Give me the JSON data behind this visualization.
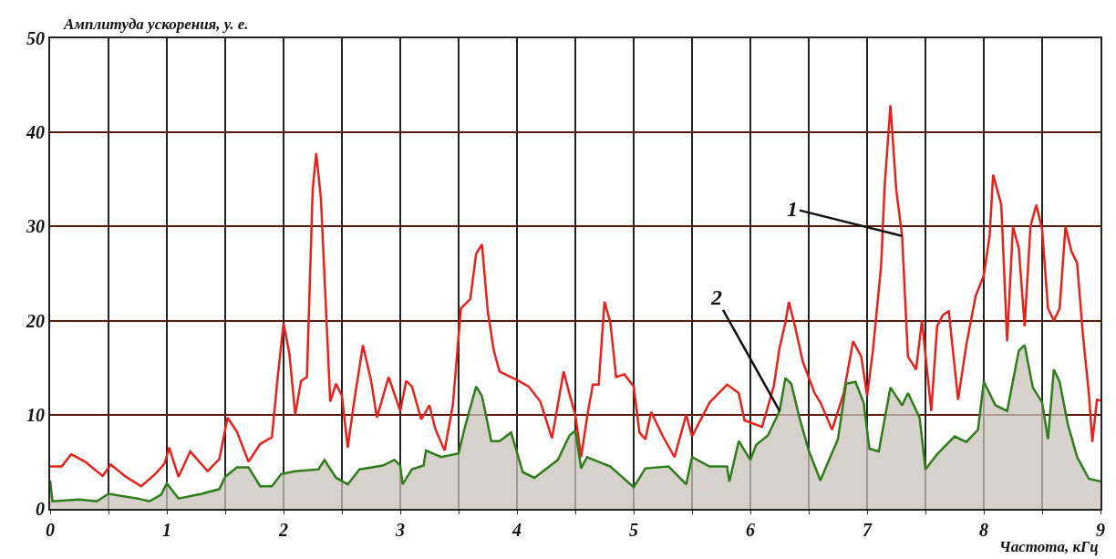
{
  "chart_data": {
    "type": "line",
    "ylabel": "Амплитуда ускорения, у. е.",
    "xlabel": "Частота, кГц",
    "xlim": [
      0,
      9
    ],
    "xticks": [
      0,
      {
        "value": 0.5,
        "label": null
      },
      1,
      {
        "value": 1.5,
        "label": null
      },
      2,
      {
        "value": 2.5,
        "label": null
      },
      3,
      {
        "value": 3.5,
        "label": null
      },
      4,
      {
        "value": 4.5,
        "label": null
      },
      5,
      {
        "value": 5.5,
        "label": null
      },
      6,
      {
        "value": 6.5,
        "label": null
      },
      7,
      {
        "value": 7.5,
        "label": null
      },
      8,
      {
        "value": 8.5,
        "label": null
      },
      9
    ],
    "ylim": [
      0,
      50
    ],
    "yticks": [
      0,
      10,
      20,
      30,
      40,
      50
    ],
    "grid": true,
    "legend": false,
    "marker": "none",
    "line_style": "solid",
    "series": [
      {
        "color": "#e8211b",
        "x": [
          0,
          0.1,
          0.18,
          0.3,
          0.45,
          0.52,
          0.65,
          0.78,
          0.9,
          0.98,
          1.02,
          1.1,
          1.2,
          1.35,
          1.45,
          1.52,
          1.6,
          1.7,
          1.8,
          1.9,
          1.95,
          2.0,
          2.05,
          2.1,
          2.15,
          2.2,
          2.25,
          2.28,
          2.32,
          2.4,
          2.45,
          2.5,
          2.55,
          2.6,
          2.68,
          2.75,
          2.8,
          2.9,
          3.0,
          3.05,
          3.1,
          3.18,
          3.25,
          3.3,
          3.38,
          3.45,
          3.52,
          3.6,
          3.65,
          3.7,
          3.75,
          3.8,
          3.85,
          3.95,
          4.0,
          4.1,
          4.2,
          4.3,
          4.4,
          4.45,
          4.5,
          4.55,
          4.6,
          4.65,
          4.7,
          4.75,
          4.8,
          4.85,
          4.92,
          5.0,
          5.05,
          5.1,
          5.15,
          5.25,
          5.35,
          5.45,
          5.5,
          5.65,
          5.8,
          5.9,
          5.95,
          6.1,
          6.2,
          6.25,
          6.3,
          6.33,
          6.38,
          6.45,
          6.55,
          6.6,
          6.7,
          6.8,
          6.88,
          6.95,
          7.0,
          7.05,
          7.12,
          7.15,
          7.2,
          7.25,
          7.3,
          7.35,
          7.42,
          7.47,
          7.55,
          7.6,
          7.65,
          7.7,
          7.78,
          7.85,
          7.93,
          8.0,
          8.05,
          8.08,
          8.15,
          8.2,
          8.25,
          8.3,
          8.35,
          8.4,
          8.45,
          8.5,
          8.55,
          8.6,
          8.65,
          8.7,
          8.75,
          8.8,
          8.85,
          8.9,
          8.93,
          8.97,
          9.0
        ],
        "values": [
          4.5,
          4.5,
          5.8,
          5.0,
          3.5,
          4.7,
          3.4,
          2.4,
          3.7,
          4.8,
          6.5,
          3.4,
          6.1,
          4.0,
          5.3,
          9.7,
          8.2,
          5.0,
          6.9,
          7.6,
          14,
          19.7,
          16.5,
          10,
          13.6,
          14,
          34,
          37.8,
          33,
          11.4,
          13.3,
          12,
          6.5,
          11,
          17.4,
          13.6,
          9.7,
          14,
          10.4,
          13.6,
          13,
          9.5,
          11,
          8.5,
          6.2,
          11,
          21.3,
          22.3,
          27.1,
          28.1,
          21,
          16.9,
          14.6,
          14,
          13.7,
          13,
          11.4,
          7.5,
          14.6,
          12.2,
          10,
          5.5,
          9.7,
          13.2,
          13.2,
          22,
          19.8,
          14,
          14.3,
          13,
          8.1,
          7.4,
          10.3,
          7.7,
          5.5,
          10,
          7.7,
          11.3,
          13.2,
          12.3,
          9.4,
          8.7,
          13,
          17.1,
          19.8,
          22,
          19.5,
          15.6,
          12.3,
          11.3,
          8.4,
          12.3,
          17.8,
          16.2,
          12,
          16.8,
          25.8,
          34.2,
          42.9,
          33.9,
          29,
          16.2,
          14.8,
          20,
          10.4,
          19.4,
          20.6,
          21,
          11.6,
          17.4,
          22.6,
          24.8,
          29,
          35.5,
          32.3,
          17.8,
          30,
          27.7,
          19.4,
          30,
          32.3,
          29.7,
          21.3,
          20,
          21.3,
          30,
          27.4,
          26.1,
          18.4,
          12.3,
          7.1,
          11.6,
          11.5
        ]
      },
      {
        "type": "area",
        "color": "#2e7d1a",
        "x": [
          0,
          0.02,
          0.25,
          0.4,
          0.5,
          0.75,
          0.85,
          0.95,
          1.0,
          1.1,
          1.3,
          1.45,
          1.5,
          1.6,
          1.7,
          1.8,
          1.9,
          1.98,
          2.1,
          2.3,
          2.35,
          2.45,
          2.55,
          2.65,
          2.85,
          2.95,
          3.0,
          3.02,
          3.1,
          3.2,
          3.22,
          3.35,
          3.5,
          3.55,
          3.65,
          3.7,
          3.78,
          3.85,
          3.95,
          4.05,
          4.15,
          4.35,
          4.45,
          4.5,
          4.55,
          4.6,
          4.8,
          5.0,
          5.1,
          5.3,
          5.45,
          5.5,
          5.65,
          5.8,
          5.82,
          5.9,
          6.0,
          6.05,
          6.15,
          6.25,
          6.3,
          6.35,
          6.42,
          6.5,
          6.6,
          6.65,
          6.75,
          6.82,
          6.9,
          6.97,
          7.02,
          7.1,
          7.2,
          7.3,
          7.35,
          7.45,
          7.5,
          7.6,
          7.75,
          7.85,
          7.95,
          8.0,
          8.1,
          8.2,
          8.3,
          8.35,
          8.42,
          8.5,
          8.55,
          8.6,
          8.65,
          8.72,
          8.8,
          8.9,
          9.0
        ],
        "values": [
          3,
          0.8,
          1,
          0.8,
          1.6,
          1.1,
          0.8,
          1.5,
          2.7,
          1.1,
          1.6,
          2.1,
          3.4,
          4.4,
          4.4,
          2.4,
          2.4,
          3.7,
          4,
          4.2,
          5.2,
          3.3,
          2.6,
          4.2,
          4.6,
          5.2,
          4.6,
          2.6,
          4.2,
          4.6,
          6.2,
          5.5,
          5.9,
          8.5,
          13,
          12,
          7.2,
          7.2,
          8.1,
          3.9,
          3.3,
          5.2,
          7.8,
          8.3,
          4.3,
          5.5,
          4.5,
          2.3,
          4.3,
          4.5,
          2.6,
          5.5,
          4.5,
          4.5,
          2.9,
          7.2,
          5.2,
          6.8,
          7.8,
          10.4,
          13.9,
          13.3,
          9.7,
          6.2,
          3,
          4.5,
          7.4,
          13.3,
          13.5,
          11.3,
          6.4,
          6.1,
          12.9,
          11,
          12.3,
          9.7,
          4.2,
          5.8,
          7.7,
          7.1,
          8.4,
          13.5,
          11,
          10.4,
          16.8,
          17.4,
          12.9,
          11.3,
          7.4,
          14.8,
          13.5,
          9,
          5.5,
          3.2,
          2.9
        ]
      }
    ],
    "annotations": [
      {
        "text": "1",
        "x": 7.3,
        "y": 29
      },
      {
        "text": "2",
        "x": 6.25,
        "y": 10.4
      }
    ]
  }
}
